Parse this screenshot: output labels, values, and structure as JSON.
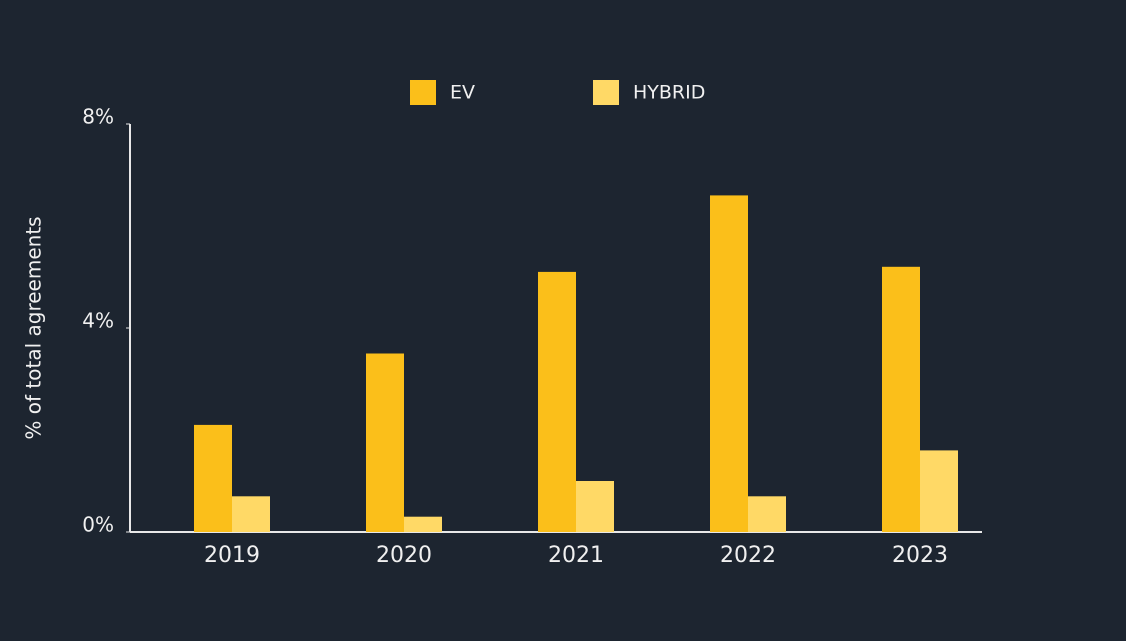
{
  "chart_data": {
    "type": "bar",
    "y_label": "% of total agreements",
    "categories": [
      "2019",
      "2020",
      "2021",
      "2022",
      "2023"
    ],
    "series": [
      {
        "name": "EV",
        "color": "#fbbf1a",
        "values": [
          2.1,
          3.5,
          5.1,
          6.6,
          5.2
        ]
      },
      {
        "name": "HYBRID",
        "color": "#ffd966",
        "values": [
          0.7,
          0.3,
          1.0,
          0.7,
          1.6
        ]
      }
    ],
    "ylim": [
      0,
      8
    ],
    "yticks": [
      {
        "value": 0,
        "label": "0%"
      },
      {
        "value": 4,
        "label": "4%"
      },
      {
        "value": 8,
        "label": "8%"
      }
    ]
  }
}
